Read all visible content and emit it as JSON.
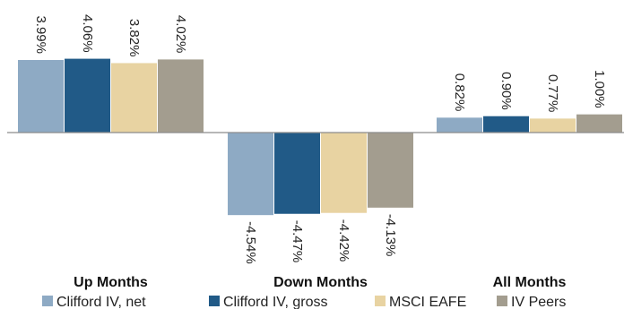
{
  "chart_data": {
    "type": "bar",
    "categories": [
      "Up Months",
      "Down Months",
      "All Months"
    ],
    "series": [
      {
        "name": "Clifford IV, net",
        "color": "#8eaac4",
        "values": [
          3.99,
          -4.54,
          0.82
        ],
        "labels": [
          "3.99%",
          "-4.54%",
          "0.82%"
        ]
      },
      {
        "name": "Clifford IV, gross",
        "color": "#215a87",
        "values": [
          4.06,
          -4.47,
          0.9
        ],
        "labels": [
          "4.06%",
          "-4.47%",
          "0.90%"
        ]
      },
      {
        "name": "MSCI EAFE",
        "color": "#e8d3a2",
        "values": [
          3.82,
          -4.42,
          0.77
        ],
        "labels": [
          "3.82%",
          "-4.42%",
          "0.77%"
        ]
      },
      {
        "name": "IV Peers",
        "color": "#a39d8f",
        "values": [
          4.02,
          -4.13,
          1.0
        ],
        "labels": [
          "4.02%",
          "-4.13%",
          "1.00%"
        ]
      }
    ],
    "title": "",
    "xlabel": "",
    "ylabel": "",
    "ylim": [
      -5.0,
      5.0
    ],
    "grid": false,
    "legend_position": "bottom",
    "axis_color": "#8c8c8c"
  }
}
